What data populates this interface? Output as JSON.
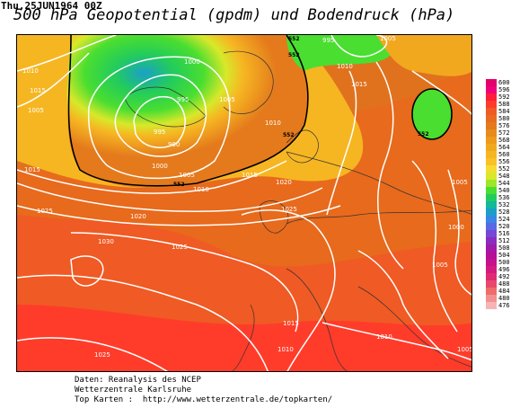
{
  "header": {
    "date": "Thu,25JUN1964 00Z",
    "title": "500 hPa Geopotential (gpdm) und Bodendruck (hPa)"
  },
  "legend": {
    "values": [
      "600",
      "596",
      "592",
      "588",
      "584",
      "580",
      "576",
      "572",
      "568",
      "564",
      "560",
      "556",
      "552",
      "548",
      "544",
      "540",
      "536",
      "532",
      "528",
      "524",
      "520",
      "516",
      "512",
      "508",
      "504",
      "500",
      "496",
      "492",
      "488",
      "484",
      "480",
      "476"
    ],
    "colors": [
      "#e2006c",
      "#f0007a",
      "#ff1d3a",
      "#ff3c2a",
      "#f05a24",
      "#e76c20",
      "#e47a1c",
      "#e88a1c",
      "#ee9a1c",
      "#f2a81e",
      "#f6b622",
      "#f8c228",
      "#f6dc30",
      "#d8e82a",
      "#9ee62a",
      "#4ade30",
      "#22cc5c",
      "#14b89a",
      "#1aa0c8",
      "#3a86e6",
      "#5a68e4",
      "#7448d4",
      "#8a2cc0",
      "#a01aa8",
      "#b4109a",
      "#c6108c",
      "#d41a80",
      "#e02a74",
      "#e8486a",
      "#ee6c6a",
      "#f29090",
      "#f6b4b4"
    ]
  },
  "map": {
    "pressure_labels": [
      "1010",
      "1015",
      "1005",
      "1000",
      "995",
      "990",
      "995",
      "1005",
      "1010",
      "1015",
      "1025",
      "1030",
      "1025",
      "1020",
      "1015",
      "1020",
      "1025",
      "1005",
      "1000",
      "1005",
      "1015",
      "1010",
      "1010",
      "1005",
      "1025",
      "1010",
      "995",
      "1005",
      "1000",
      "1010",
      "1015",
      "1005"
    ],
    "geopotential_labels": [
      "552",
      "552",
      "552",
      "552",
      "552"
    ]
  },
  "credits": {
    "line1": "Daten: Reanalysis des NCEP",
    "line2": "Wetterzentrale Karlsruhe",
    "line3": "Top Karten :  http://www.wetterzentrale.de/topkarten/"
  }
}
